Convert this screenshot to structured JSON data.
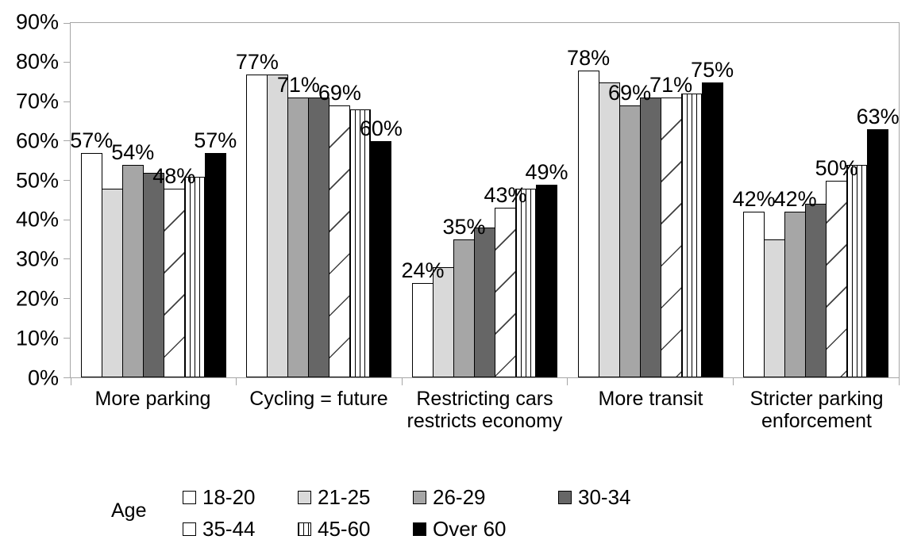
{
  "chart_data": {
    "type": "bar",
    "title": "",
    "xlabel": "",
    "ylabel": "",
    "ylim": [
      0,
      90
    ],
    "grid": "top-90-line-only",
    "legend_position": "bottom",
    "legend_title": "Age",
    "axis_color": "#a6a6a6",
    "bar_border_color": "#000000",
    "y_tick_labels": [
      "90%",
      "80%",
      "70%",
      "60%",
      "50%",
      "40%",
      "30%",
      "20%",
      "10%",
      "0%"
    ],
    "categories": [
      "More parking",
      "Cycling = future",
      "Restricting cars restricts economy",
      "More transit",
      "Stricter parking enforcement"
    ],
    "category_lines": [
      [
        "More parking"
      ],
      [
        "Cycling = future"
      ],
      [
        "Restricting cars",
        "restricts economy"
      ],
      [
        "More transit"
      ],
      [
        "Stricter parking",
        "enforcement"
      ]
    ],
    "series": [
      {
        "name": "18-20",
        "values": [
          57,
          77,
          24,
          78,
          42
        ],
        "fill": "#ffffff",
        "pattern": "solid",
        "data_labels": true,
        "label_texts": [
          "57%",
          "77%",
          "24%",
          "78%",
          "42%"
        ]
      },
      {
        "name": "21-25",
        "values": [
          48,
          77,
          28,
          75,
          35
        ],
        "fill": "#d9d9d9",
        "pattern": "solid",
        "data_labels": false,
        "label_texts": []
      },
      {
        "name": "26-29",
        "values": [
          54,
          71,
          35,
          69,
          42
        ],
        "fill": "#a6a6a6",
        "pattern": "solid",
        "data_labels": true,
        "label_texts": [
          "54%",
          "71%",
          "35%",
          "69%",
          "42%"
        ]
      },
      {
        "name": "30-34",
        "values": [
          52,
          71,
          38,
          71,
          44
        ],
        "fill": "#666666",
        "pattern": "solid",
        "data_labels": false,
        "label_texts": []
      },
      {
        "name": "35-44",
        "values": [
          48,
          69,
          43,
          71,
          50
        ],
        "fill": "#ffffff",
        "pattern": "diagonal-hatch",
        "data_labels": true,
        "label_texts": [
          "48%",
          "69%",
          "43%",
          "71%",
          "50%"
        ]
      },
      {
        "name": "45-60",
        "values": [
          51,
          68,
          48,
          72,
          54
        ],
        "fill": "#ffffff",
        "pattern": "vertical-stripes",
        "data_labels": false,
        "label_texts": []
      },
      {
        "name": "Over 60",
        "values": [
          57,
          60,
          49,
          75,
          63
        ],
        "fill": "#000000",
        "pattern": "solid",
        "data_labels": true,
        "label_texts": [
          "57%",
          "60%",
          "49%",
          "75%",
          "63%"
        ]
      }
    ],
    "legend_rows": [
      [
        "18-20",
        "21-25",
        "26-29",
        "30-34"
      ],
      [
        "35-44",
        "45-60",
        "Over 60"
      ]
    ]
  }
}
